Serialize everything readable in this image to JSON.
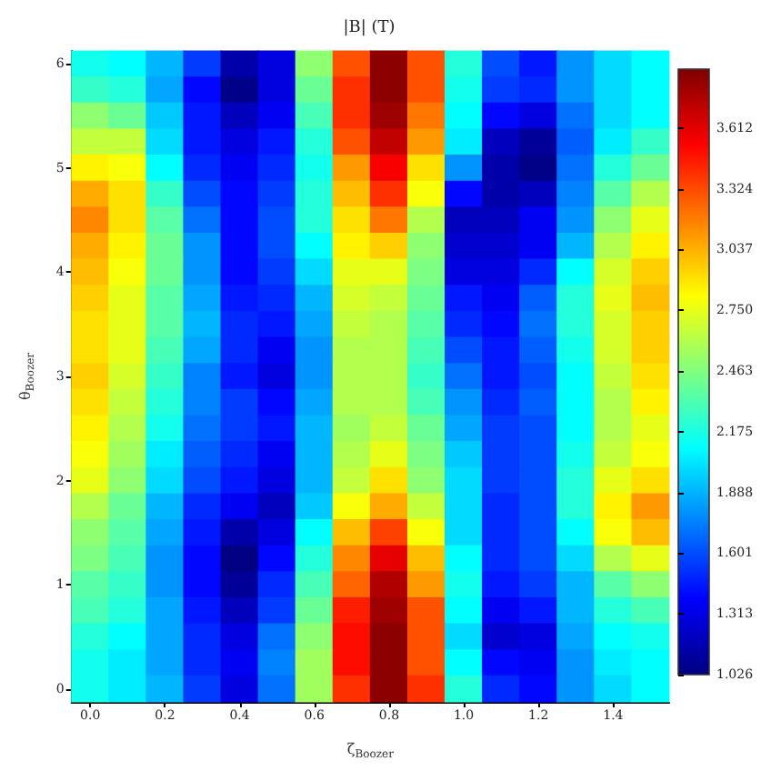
{
  "chart_data": {
    "type": "heatmap",
    "title": "|B| (T)",
    "xlabel": "ζ$_{Boozer}$",
    "ylabel": "θ$_{Boozer}$",
    "categories": [
      "0.0",
      null,
      "0.2",
      null,
      "0.4",
      null,
      "0.6",
      null,
      "0.8",
      null,
      "1.0",
      null,
      "1.2",
      null,
      "1.4",
      null
    ],
    "y_categories": [
      "6",
      null,
      null,
      null,
      "5",
      null,
      null,
      null,
      "4",
      null,
      null,
      null,
      "3",
      null,
      null,
      null,
      "2",
      null,
      null,
      null,
      "1",
      null,
      null,
      null,
      "0"
    ],
    "clim": [
      1.026,
      3.89
    ],
    "cticks": [
      1.026,
      1.313,
      1.601,
      1.888,
      2.175,
      2.463,
      {
        "value": 2.75,
        "label": "2.750"
      },
      3.037,
      3.324,
      3.612
    ],
    "cells": [
      [
        2.15,
        2.1,
        1.9,
        1.55,
        1.15,
        1.3,
        2.5,
        3.3,
        3.85,
        3.3,
        2.2,
        1.6,
        1.45,
        1.8,
        2.0,
        2.1
      ],
      [
        2.25,
        2.2,
        1.85,
        1.4,
        1.05,
        1.3,
        2.4,
        3.4,
        3.85,
        3.3,
        2.15,
        1.55,
        1.5,
        1.8,
        2.0,
        2.1
      ],
      [
        2.5,
        2.4,
        1.95,
        1.45,
        1.2,
        1.35,
        2.3,
        3.4,
        3.8,
        3.2,
        2.1,
        1.4,
        1.3,
        1.7,
        2.0,
        2.1
      ],
      [
        2.65,
        2.65,
        2.0,
        1.45,
        1.3,
        1.45,
        2.2,
        3.3,
        3.7,
        3.1,
        2.05,
        1.2,
        1.1,
        1.65,
        2.05,
        2.25
      ],
      [
        2.85,
        2.8,
        2.1,
        1.5,
        1.35,
        1.5,
        2.15,
        3.1,
        3.55,
        2.9,
        1.8,
        1.15,
        1.05,
        1.7,
        2.2,
        2.4
      ],
      [
        3.05,
        2.9,
        2.25,
        1.6,
        1.4,
        1.55,
        2.2,
        3.0,
        3.4,
        2.8,
        1.4,
        1.15,
        1.2,
        1.75,
        2.35,
        2.6
      ],
      [
        3.15,
        2.9,
        2.35,
        1.7,
        1.4,
        1.6,
        2.2,
        2.9,
        3.2,
        2.6,
        1.2,
        1.2,
        1.35,
        1.8,
        2.5,
        2.75
      ],
      [
        3.05,
        2.85,
        2.4,
        1.8,
        1.4,
        1.6,
        2.1,
        2.85,
        2.95,
        2.5,
        1.25,
        1.25,
        1.35,
        1.9,
        2.6,
        2.85
      ],
      [
        3.0,
        2.8,
        2.4,
        1.8,
        1.4,
        1.55,
        2.0,
        2.75,
        2.75,
        2.45,
        1.3,
        1.3,
        1.5,
        2.1,
        2.7,
        2.95
      ],
      [
        2.95,
        2.75,
        2.35,
        1.85,
        1.45,
        1.5,
        1.9,
        2.7,
        2.65,
        2.4,
        1.45,
        1.35,
        1.65,
        2.2,
        2.75,
        3.0
      ],
      [
        2.9,
        2.75,
        2.35,
        1.9,
        1.5,
        1.45,
        1.85,
        2.65,
        2.6,
        2.35,
        1.5,
        1.4,
        1.7,
        2.2,
        2.7,
        2.95
      ],
      [
        2.9,
        2.75,
        2.3,
        1.85,
        1.5,
        1.35,
        1.8,
        2.6,
        2.6,
        2.3,
        1.6,
        1.45,
        1.65,
        2.15,
        2.7,
        2.95
      ],
      [
        2.95,
        2.7,
        2.25,
        1.75,
        1.45,
        1.3,
        1.8,
        2.6,
        2.6,
        2.25,
        1.7,
        1.45,
        1.6,
        2.1,
        2.65,
        2.9
      ],
      [
        2.9,
        2.65,
        2.2,
        1.75,
        1.55,
        1.4,
        1.85,
        2.6,
        2.6,
        2.3,
        1.8,
        1.5,
        1.65,
        2.1,
        2.6,
        2.85
      ],
      [
        2.85,
        2.6,
        2.15,
        1.7,
        1.55,
        1.45,
        1.9,
        2.55,
        2.65,
        2.4,
        1.85,
        1.55,
        1.6,
        2.1,
        2.6,
        2.75
      ],
      [
        2.8,
        2.55,
        2.05,
        1.65,
        1.5,
        1.35,
        1.9,
        2.6,
        2.75,
        2.45,
        1.95,
        1.55,
        1.6,
        2.15,
        2.65,
        2.8
      ],
      [
        2.75,
        2.5,
        2.0,
        1.6,
        1.45,
        1.3,
        1.9,
        2.65,
        2.9,
        2.5,
        2.0,
        1.55,
        1.6,
        2.2,
        2.75,
        2.9
      ],
      [
        2.6,
        2.4,
        1.9,
        1.5,
        1.35,
        1.2,
        1.95,
        2.8,
        3.05,
        2.65,
        2.0,
        1.5,
        1.6,
        2.2,
        2.85,
        3.1
      ],
      [
        2.5,
        2.35,
        1.85,
        1.45,
        1.15,
        1.3,
        2.1,
        3.0,
        3.35,
        2.8,
        2.0,
        1.5,
        1.6,
        2.1,
        2.8,
        3.0
      ],
      [
        2.45,
        2.3,
        1.8,
        1.4,
        1.03,
        1.4,
        2.2,
        3.15,
        3.6,
        3.0,
        2.1,
        1.5,
        1.6,
        2.0,
        2.6,
        2.75
      ],
      [
        2.35,
        2.25,
        1.8,
        1.4,
        1.1,
        1.5,
        2.3,
        3.25,
        3.75,
        3.1,
        2.15,
        1.45,
        1.55,
        1.9,
        2.35,
        2.5
      ],
      [
        2.3,
        2.2,
        1.85,
        1.45,
        1.2,
        1.55,
        2.4,
        3.45,
        3.8,
        3.3,
        2.1,
        1.35,
        1.45,
        1.9,
        2.2,
        2.3
      ],
      [
        2.2,
        2.1,
        1.85,
        1.5,
        1.3,
        1.7,
        2.5,
        3.5,
        3.85,
        3.3,
        2.0,
        1.25,
        1.3,
        1.85,
        2.1,
        2.15
      ],
      [
        2.15,
        2.05,
        1.85,
        1.5,
        1.35,
        1.75,
        2.55,
        3.5,
        3.85,
        3.3,
        2.1,
        1.4,
        1.35,
        1.8,
        2.05,
        2.1
      ],
      [
        2.15,
        2.05,
        1.9,
        1.55,
        1.3,
        1.7,
        2.55,
        3.4,
        3.85,
        3.4,
        2.2,
        1.5,
        1.4,
        1.8,
        2.0,
        2.1
      ]
    ]
  }
}
